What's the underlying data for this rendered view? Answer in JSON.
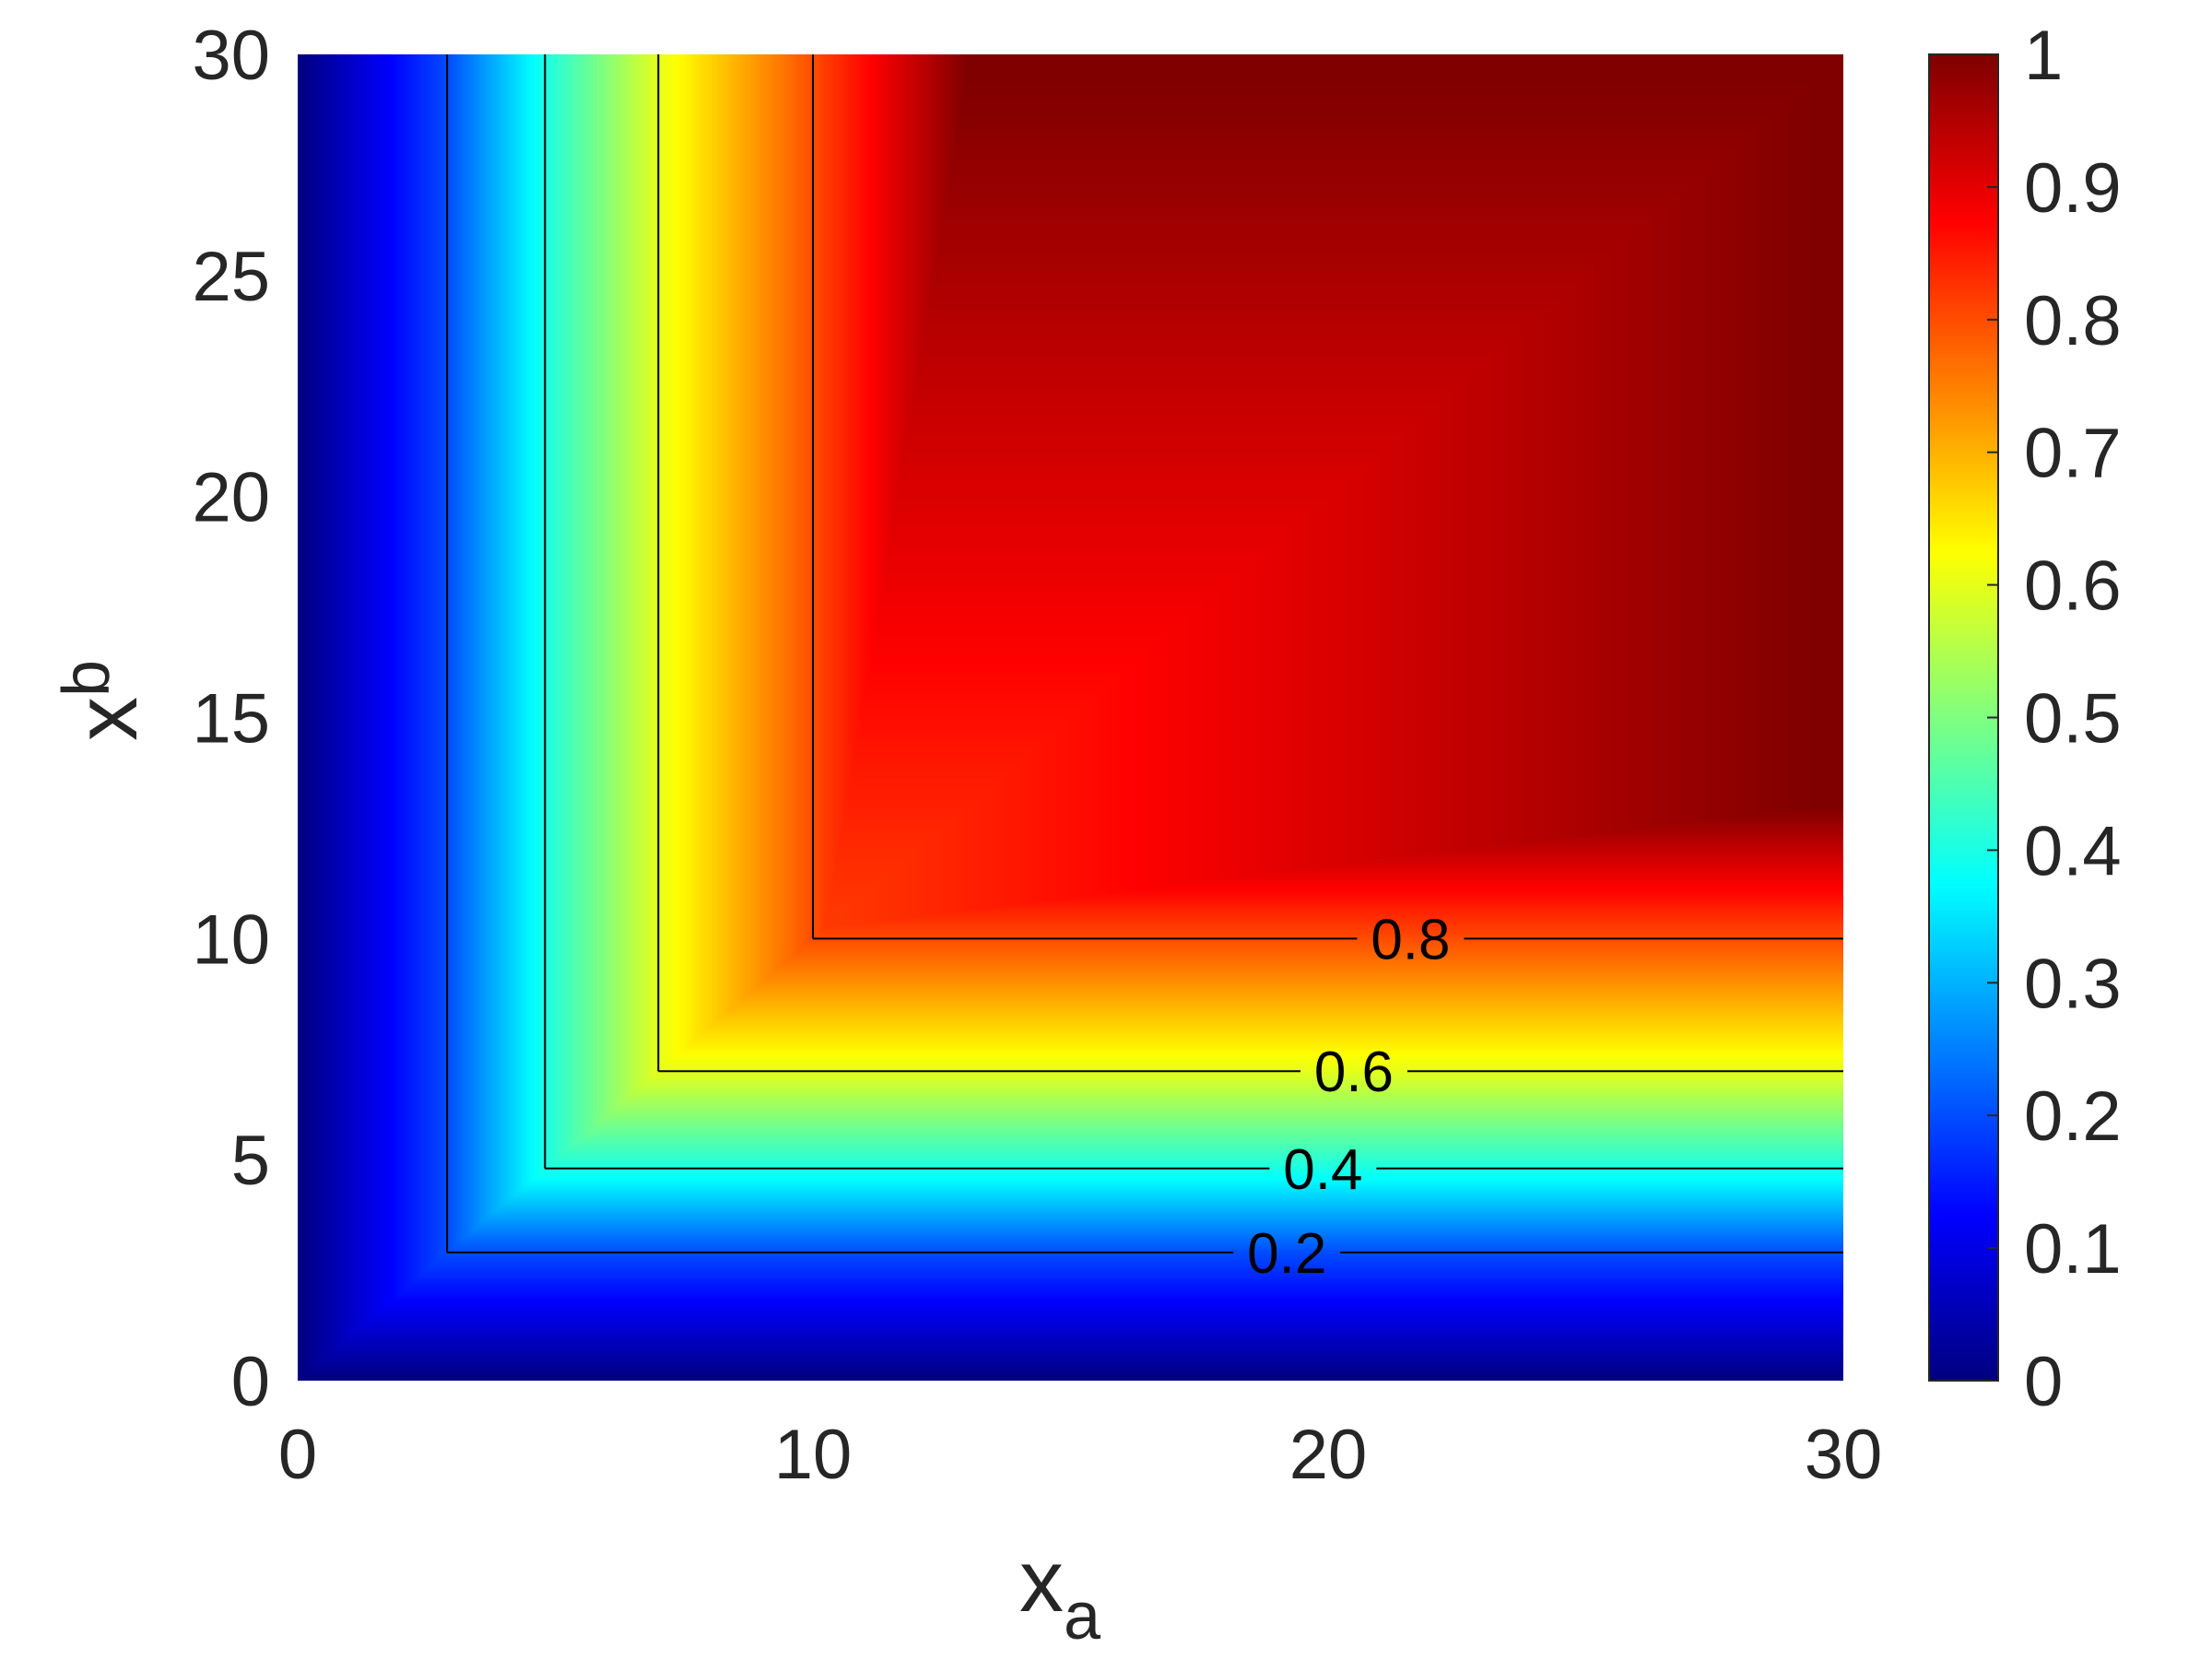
{
  "chart_data": {
    "type": "heatmap",
    "title": "",
    "xlabel": {
      "main": "x",
      "sub": "a"
    },
    "ylabel": {
      "main": "x",
      "sub": "b"
    },
    "xlim": [
      0,
      30
    ],
    "ylim": [
      0,
      30
    ],
    "xticks": [
      "0",
      "10",
      "20",
      "30"
    ],
    "yticks": [
      "0",
      "5",
      "10",
      "15",
      "20",
      "25",
      "30"
    ],
    "colormap": "jet",
    "colorbar": {
      "range": [
        0,
        1
      ],
      "ticks": [
        "0",
        "0.1",
        "0.2",
        "0.3",
        "0.4",
        "0.5",
        "0.6",
        "0.7",
        "0.8",
        "0.9",
        "1"
      ]
    },
    "contours": [
      {
        "level": 0.2,
        "label": "0.2",
        "corner": 2.9,
        "label_x": 19.2
      },
      {
        "level": 0.4,
        "label": "0.4",
        "corner": 4.8,
        "label_x": 19.9
      },
      {
        "level": 0.6,
        "label": "0.6",
        "corner": 7.0,
        "label_x": 20.5
      },
      {
        "level": 0.8,
        "label": "0.8",
        "corner": 10.0,
        "label_x": 21.6
      }
    ],
    "grid": false,
    "colors": {
      "text": "#262626",
      "contour": "#000000"
    }
  }
}
